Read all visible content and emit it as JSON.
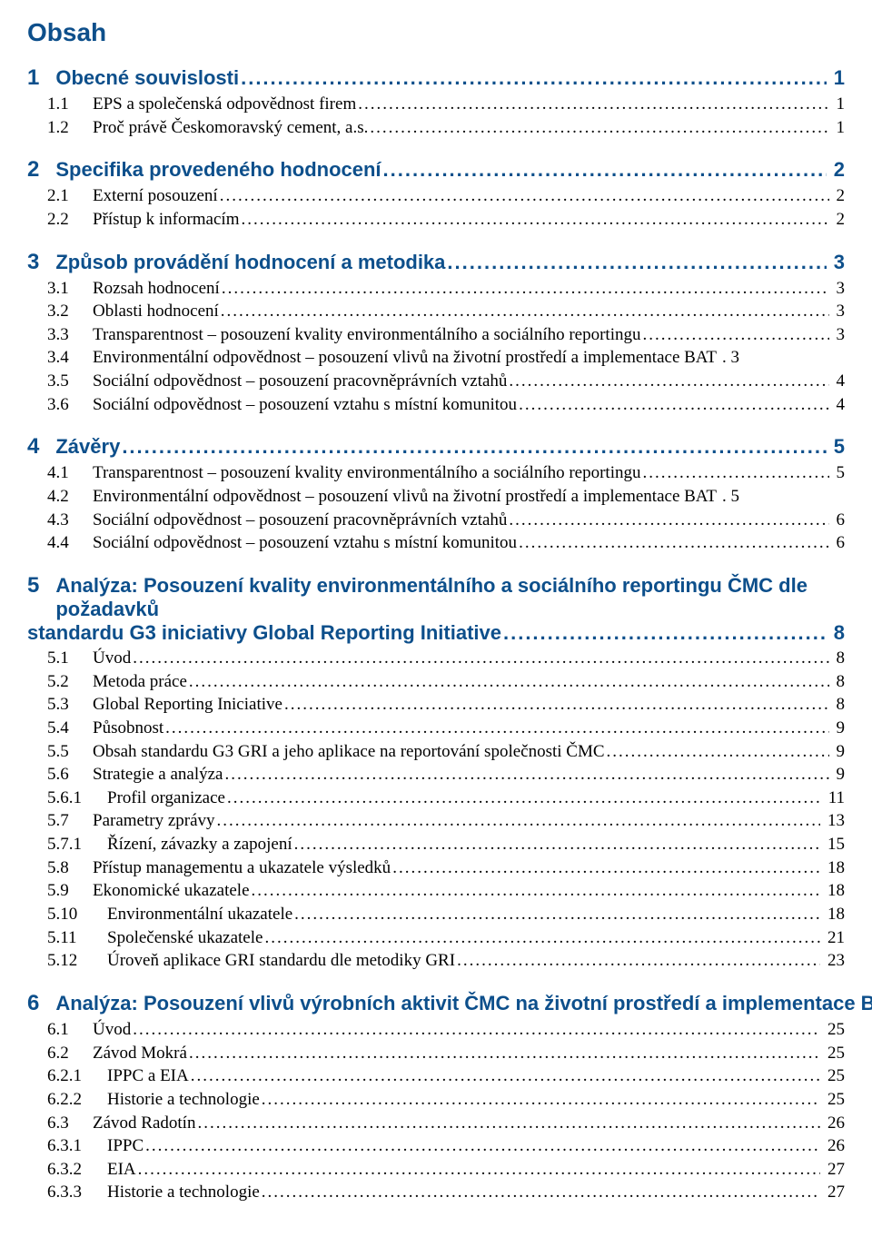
{
  "title": "Obsah",
  "heading_color": "#0d4f8b",
  "body_color": "#000000",
  "background_color": "#ffffff",
  "heading_font": "Arial Narrow",
  "body_font": "Times New Roman",
  "heading_fontsize": 22,
  "title_fontsize": 28,
  "body_fontsize": 19,
  "sections": [
    {
      "num": "1",
      "text": "Obecné souvislosti",
      "page": "1",
      "items": [
        {
          "num": "1.1",
          "text": "EPS a společenská odpovědnost firem",
          "page": "1"
        },
        {
          "num": "1.2",
          "text": "Proč právě Českomoravský cement, a.s.",
          "page": "1"
        }
      ]
    },
    {
      "num": "2",
      "text": "Specifika provedeného hodnocení",
      "page": "2",
      "items": [
        {
          "num": "2.1",
          "text": "Externí posouzení",
          "page": "2"
        },
        {
          "num": "2.2",
          "text": "Přístup k informacím",
          "page": "2"
        }
      ]
    },
    {
      "num": "3",
      "text": "Způsob provádění hodnocení a metodika",
      "page": "3",
      "items": [
        {
          "num": "3.1",
          "text": "Rozsah hodnocení",
          "page": "3"
        },
        {
          "num": "3.2",
          "text": "Oblasti hodnocení",
          "page": "3"
        },
        {
          "num": "3.3",
          "text": "Transparentnost – posouzení kvality environmentálního a sociálního reportingu",
          "page": "3"
        },
        {
          "num": "3.4",
          "text": "Environmentální odpovědnost – posouzení vlivů na životní prostředí a implementace BAT",
          "page": ". 3",
          "noleader": true
        },
        {
          "num": "3.5",
          "text": "Sociální odpovědnost – posouzení pracovněprávních vztahů",
          "page": "4"
        },
        {
          "num": "3.6",
          "text": "Sociální odpovědnost – posouzení vztahu s místní komunitou",
          "page": "4"
        }
      ]
    },
    {
      "num": "4",
      "text": "Závěry",
      "page": "5",
      "items": [
        {
          "num": "4.1",
          "text": "Transparentnost – posouzení kvality environmentálního a sociálního reportingu",
          "page": "5"
        },
        {
          "num": "4.2",
          "text": "Environmentální odpovědnost – posouzení vlivů na životní prostředí a implementace BAT",
          "page": ". 5",
          "noleader": true
        },
        {
          "num": "4.3",
          "text": "Sociální odpovědnost – posouzení pracovněprávních vztahů",
          "page": "6"
        },
        {
          "num": "4.4",
          "text": "Sociální odpovědnost – posouzení vztahu s místní komunitou",
          "page": "6"
        }
      ]
    },
    {
      "num": "5",
      "text_line1": "Analýza: Posouzení kvality environmentálního a sociálního reportingu ČMC dle požadavků",
      "text_line2": "standardu G3 iniciativy Global Reporting Initiative",
      "page": "8",
      "wrapped": true,
      "items": [
        {
          "num": "5.1",
          "text": "Úvod",
          "page": "8"
        },
        {
          "num": "5.2",
          "text": "Metoda práce",
          "page": "8"
        },
        {
          "num": "5.3",
          "text": "Global Reporting Iniciative",
          "page": "8"
        },
        {
          "num": "5.4",
          "text": "Působnost",
          "page": "9"
        },
        {
          "num": "5.5",
          "text": "Obsah standardu G3 GRI a jeho aplikace na reportování společnosti ČMC",
          "page": "9"
        },
        {
          "num": "5.6",
          "text": "Strategie a analýza",
          "page": "9"
        },
        {
          "num": "5.6.1",
          "text": "Profil organizace",
          "page": "11",
          "sub": true
        },
        {
          "num": "5.7",
          "text": "Parametry zprávy",
          "page": "13"
        },
        {
          "num": "5.7.1",
          "text": "Řízení, závazky a zapojení",
          "page": "15",
          "sub": true
        },
        {
          "num": "5.8",
          "text": "Přístup managementu a ukazatele výsledků",
          "page": "18"
        },
        {
          "num": "5.9",
          "text": "Ekonomické ukazatele",
          "page": "18"
        },
        {
          "num": "5.10",
          "text": "Environmentální ukazatele",
          "page": "18",
          "sub": true
        },
        {
          "num": "5.11",
          "text": "Společenské ukazatele",
          "page": "21",
          "sub": true
        },
        {
          "num": "5.12",
          "text": "Úroveň aplikace GRI standardu dle metodiky GRI",
          "page": "23",
          "sub": true
        }
      ]
    },
    {
      "num": "6",
      "text": "Analýza: Posouzení vlivů výrobních aktivit ČMC na životní prostředí a implementace BAT",
      "page": "25",
      "items": [
        {
          "num": "6.1",
          "text": "Úvod",
          "page": "25"
        },
        {
          "num": "6.2",
          "text": "Závod Mokrá",
          "page": "25"
        },
        {
          "num": "6.2.1",
          "text": "IPPC a EIA",
          "page": "25",
          "sub": true
        },
        {
          "num": "6.2.2",
          "text": "Historie a technologie",
          "page": "25",
          "sub": true
        },
        {
          "num": "6.3",
          "text": "Závod Radotín",
          "page": "26"
        },
        {
          "num": "6.3.1",
          "text": "IPPC",
          "page": "26",
          "sub": true
        },
        {
          "num": "6.3.2",
          "text": "EIA",
          "page": "27",
          "sub": true
        },
        {
          "num": "6.3.3",
          "text": "Historie a technologie",
          "page": "27",
          "sub": true
        }
      ]
    }
  ]
}
